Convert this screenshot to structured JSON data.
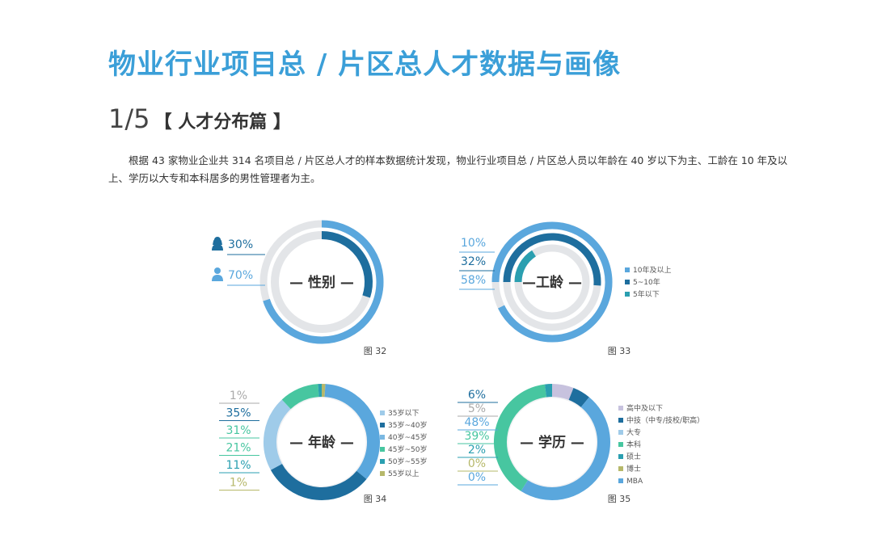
{
  "page": {
    "title": "物业行业项目总 / 片区总人才数据与画像",
    "section_number": "1/5",
    "section_title": "【 人才分布篇 】",
    "intro": "根据 43 家物业企业共 314 名项目总 / 片区总人才的样本数据统计发现，物业行业项目总 / 片区总人员以年龄在 40 岁以下为主、工龄在 10 年及以上、学历以大专和本科居多的男性管理者为主。"
  },
  "colors": {
    "title": "#3b9fd8",
    "gray_track": "#e3e5e8",
    "outer_ring": "#5aa7dd"
  },
  "chart_data": [
    {
      "type": "pie",
      "caption": "图 32",
      "center_label": "— 性别 —",
      "categories": [
        "女",
        "男"
      ],
      "values": [
        30,
        70
      ],
      "value_labels": [
        "30%",
        "70%"
      ],
      "colors": [
        "#1e6e9e",
        "#5aa7dd"
      ],
      "label_colors": [
        "#1e6e9e",
        "#5aa7dd"
      ],
      "icons": [
        "female-user-icon",
        "male-user-icon"
      ],
      "legend": []
    },
    {
      "type": "pie",
      "caption": "图 33",
      "center_label": "—工龄 —",
      "categories": [
        "5年以下",
        "5~10年",
        "10年及以上"
      ],
      "values": [
        10,
        32,
        58
      ],
      "value_labels": [
        "10%",
        "32%",
        "58%"
      ],
      "colors": [
        "#2a9fb0",
        "#1e6e9e",
        "#5aa7dd"
      ],
      "label_colors": [
        "#5aa7dd",
        "#1e6e9e",
        "#5aa7dd"
      ],
      "legend": [
        "10年及以上",
        "5~10年",
        "5年以下"
      ],
      "legend_colors": [
        "#5aa7dd",
        "#1e6e9e",
        "#2a9fb0"
      ]
    },
    {
      "type": "pie",
      "caption": "图 34",
      "center_label": "— 年龄 —",
      "categories": [
        "55岁以上",
        "35岁以下",
        "35岁~40岁",
        "40岁~45岁",
        "45岁~50岁",
        "50岁~55岁"
      ],
      "values": [
        1,
        35,
        31,
        21,
        11,
        1
      ],
      "value_labels": [
        "1%",
        "35%",
        "31%",
        "21%",
        "11%",
        "1%"
      ],
      "colors": [
        "#b6b86a",
        "#5aa7dd",
        "#1e6e9e",
        "#9fcbe9",
        "#47c6a0",
        "#2a9fb0"
      ],
      "label_colors": [
        "#aaaaaa",
        "#1e6e9e",
        "#47c6a0",
        "#47c6a0",
        "#2a9fb0",
        "#b6b86a"
      ],
      "legend": [
        "35岁以下",
        "35岁~40岁",
        "40岁~45岁",
        "45岁~50岁",
        "50岁~55岁",
        "55岁以上"
      ],
      "legend_colors": [
        "#9fcbe9",
        "#1e6e9e",
        "#7ab8e2",
        "#47c6a0",
        "#2a9fb0",
        "#b6b86a"
      ]
    },
    {
      "type": "pie",
      "caption": "图 35",
      "center_label": "— 学历 —",
      "categories": [
        "高中及以下",
        "中技（中专/技校/职高）",
        "大专",
        "本科",
        "硕士",
        "博士",
        "MBA"
      ],
      "values": [
        6,
        5,
        48,
        39,
        2,
        0,
        0
      ],
      "value_labels": [
        "6%",
        "5%",
        "48%",
        "39%",
        "2%",
        "0%",
        "0%"
      ],
      "colors": [
        "#c7c2de",
        "#1e6e9e",
        "#5aa7dd",
        "#47c6a0",
        "#2a9fb0",
        "#b6b86a",
        "#7ab8e2"
      ],
      "label_colors": [
        "#1e6e9e",
        "#aaaaaa",
        "#5aa7dd",
        "#47c6a0",
        "#2a9fb0",
        "#b6b86a",
        "#5aa7dd"
      ],
      "legend": [
        "高中及以下",
        "中技（中专/技校/职高）",
        "大专",
        "本科",
        "硕士",
        "博士",
        "MBA"
      ],
      "legend_colors": [
        "#c7c2de",
        "#1e6e9e",
        "#9fcbe9",
        "#47c6a0",
        "#2a9fb0",
        "#b6b86a",
        "#5aa7dd"
      ]
    }
  ]
}
